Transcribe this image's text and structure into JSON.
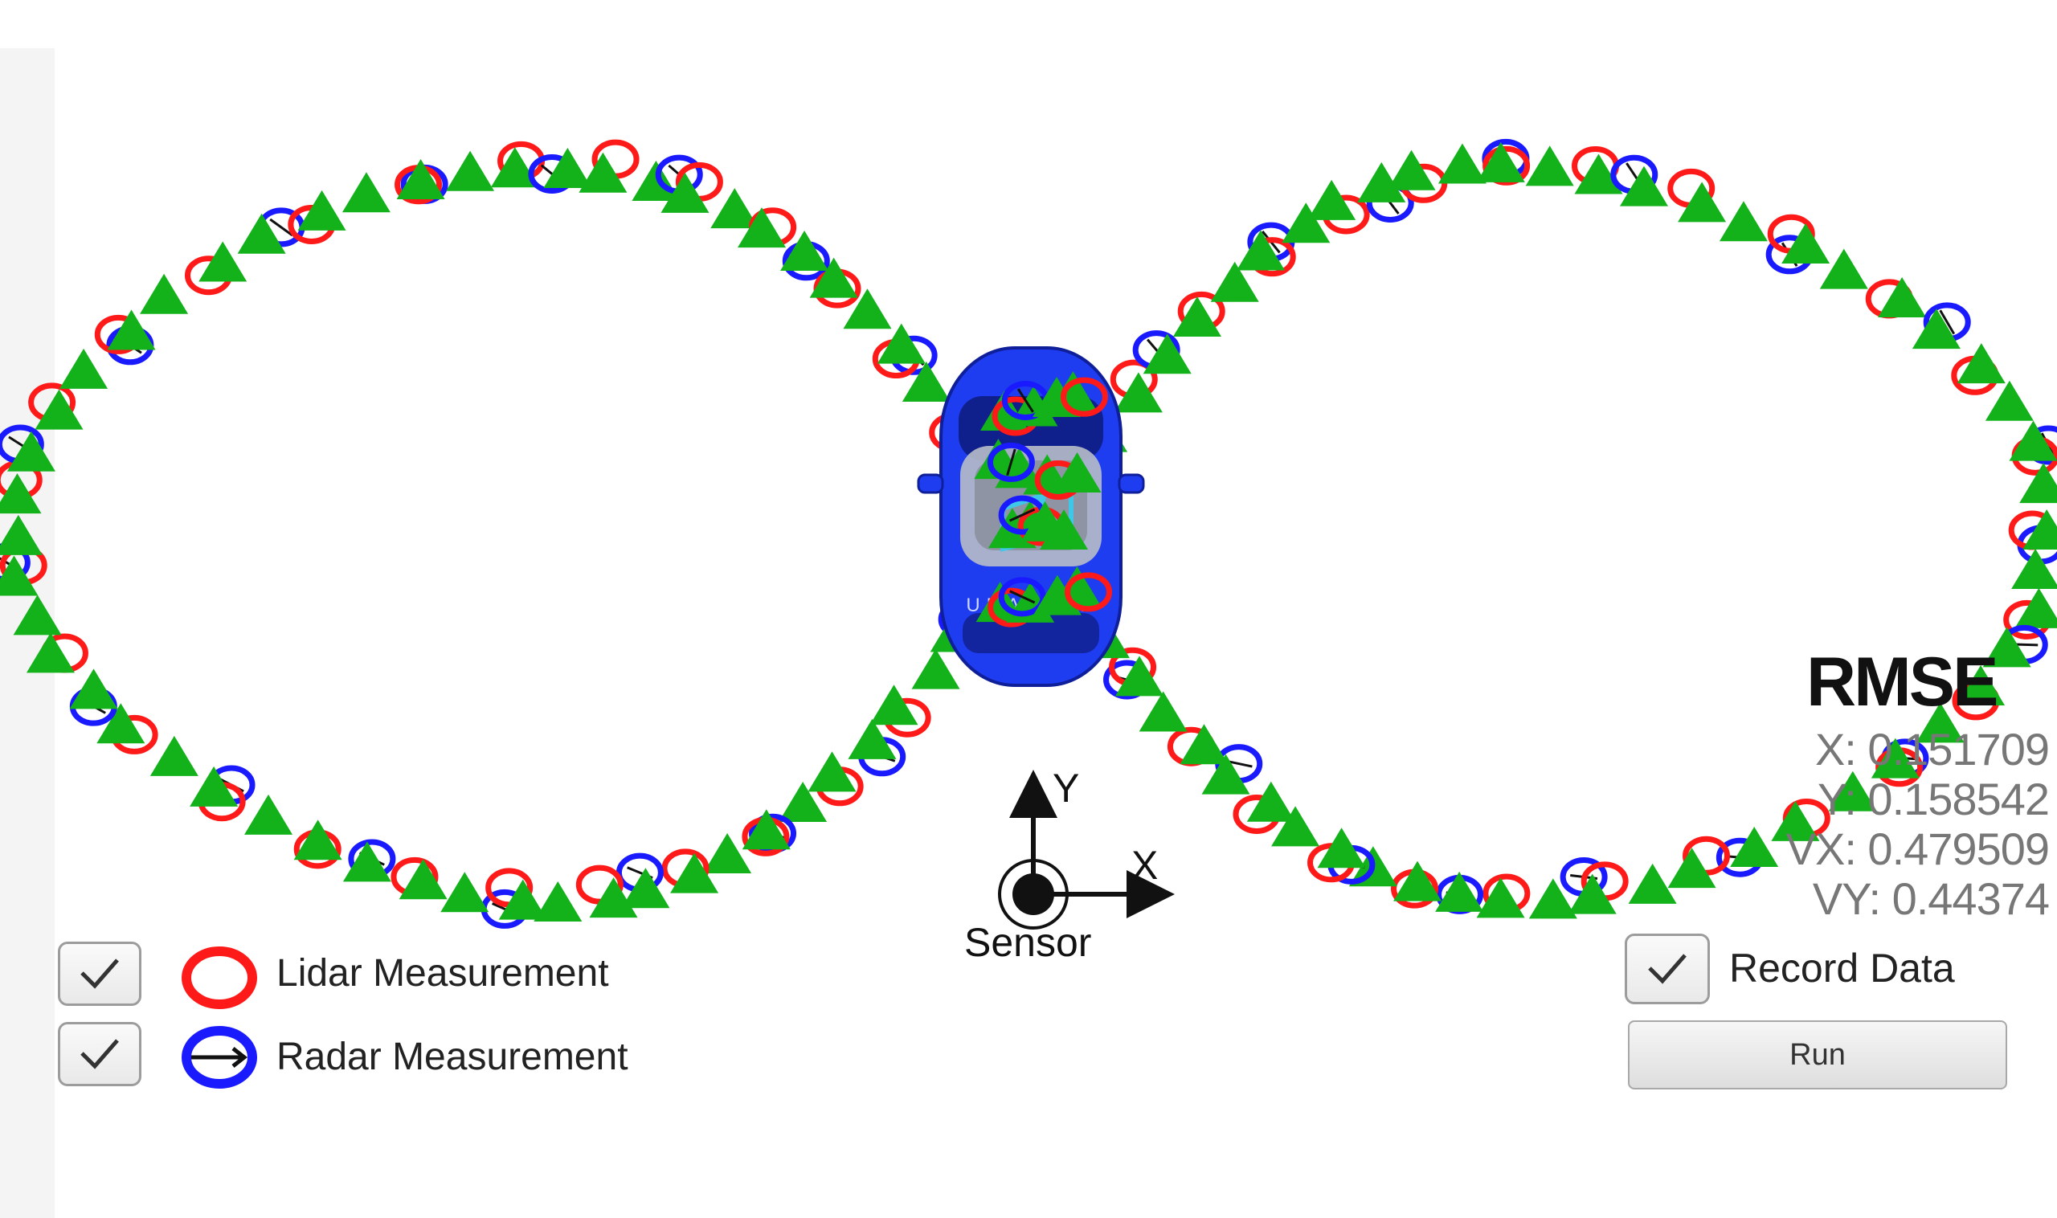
{
  "legend": {
    "lidar_label": "Lidar Measurement",
    "radar_label": "Radar Measurement",
    "lidar_checked": true,
    "radar_checked": true
  },
  "record": {
    "label": "Record Data",
    "checked": true
  },
  "run_button": {
    "label": "Run"
  },
  "rmse": {
    "title": "RMSE",
    "x": "X: 0.151709",
    "y": "Y: 0.158542",
    "vx": "VX: 0.479509",
    "vy": "VY:  0.44374"
  },
  "sensor": {
    "label": "Sensor",
    "x_axis": "X",
    "y_axis": "Y"
  },
  "colors": {
    "lidar": "#ff1a1a",
    "radar": "#1a1aff",
    "estimate": "#13b21b",
    "car_body": "#1e3cf0"
  },
  "icons": [
    "check-icon",
    "lidar-circle-icon",
    "radar-circle-icon",
    "car-icon",
    "sensor-icon"
  ]
}
